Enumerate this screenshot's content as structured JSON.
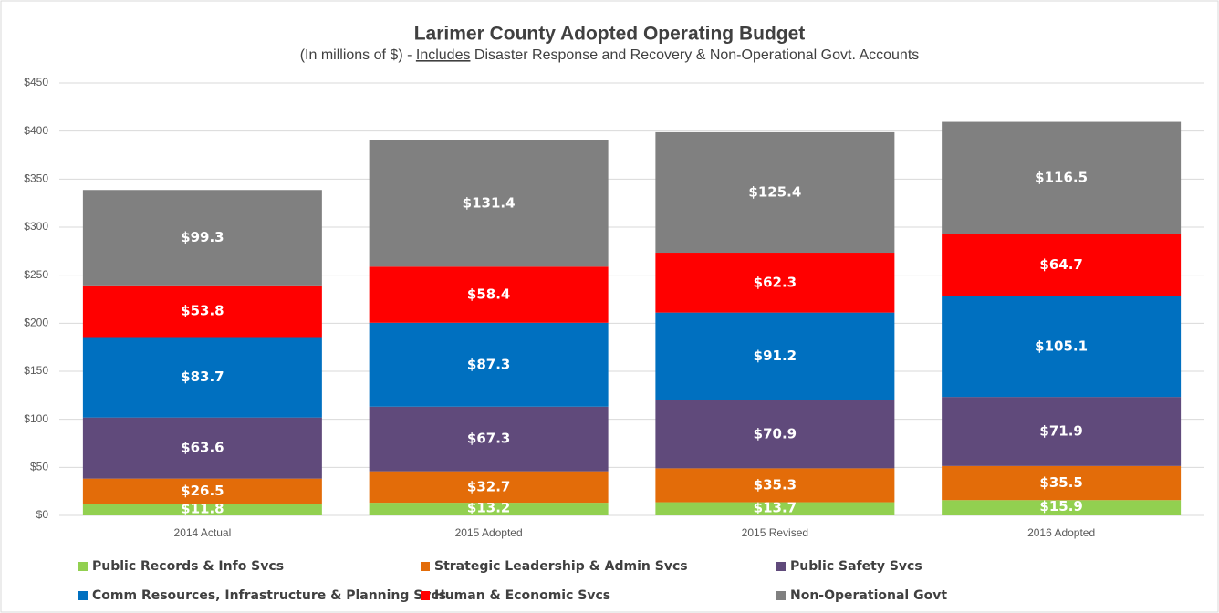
{
  "chart_data": {
    "type": "stacked_bar",
    "title": "Larimer County Adopted Operating Budget",
    "subtitle": [
      "(In millions  of $) -",
      "Includes",
      "Disaster Response and Recovery & Non-Operational Govt. Accounts"
    ],
    "categories": [
      "2014 Actual",
      "2015 Adopted",
      "2015 Revised",
      "2016 Adopted"
    ],
    "series": [
      {
        "name": "Public Records & Info Svcs",
        "color": "#92d050",
        "values": [
          11.8,
          13.2,
          13.7,
          15.9
        ],
        "value_labels": [
          "$11.8",
          "$13.2",
          "$13.7",
          "$15.9"
        ]
      },
      {
        "name": "Strategic Leadership & Admin Svcs",
        "color": "#e36c09",
        "values": [
          26.5,
          32.7,
          35.3,
          35.5
        ],
        "value_labels": [
          "$26.5",
          "$32.7",
          "$35.3",
          "$35.5"
        ]
      },
      {
        "name": "Public Safety Svcs",
        "color": "#604a7b",
        "values": [
          63.6,
          67.3,
          70.9,
          71.9
        ],
        "value_labels": [
          "$63.6",
          "$67.3",
          "$70.9",
          "$71.9"
        ]
      },
      {
        "name": "Comm Resources, Infrastructure & Planning Svcs.",
        "color": "#0070c0",
        "values": [
          83.7,
          87.3,
          91.2,
          105.1
        ],
        "value_labels": [
          "$83.7",
          "$87.3",
          "$91.2",
          "$105.1"
        ]
      },
      {
        "name": "Human & Economic Svcs",
        "color": "#ff0000",
        "values": [
          53.8,
          58.4,
          62.3,
          64.7
        ],
        "value_labels": [
          "$53.8",
          "$58.4",
          "$62.3",
          "$64.7"
        ]
      },
      {
        "name": "Non-Operational Govt",
        "color": "#808080",
        "values": [
          99.3,
          131.4,
          125.4,
          116.5
        ],
        "value_labels": [
          "$99.3",
          "$131.4",
          "$125.4",
          "$116.5"
        ]
      }
    ],
    "ylim": [
      0,
      450
    ],
    "yticks": [
      {
        "value": 0,
        "label": "$0"
      },
      {
        "value": 50,
        "label": "$50"
      },
      {
        "value": 100,
        "label": "$100"
      },
      {
        "value": 150,
        "label": "$150"
      },
      {
        "value": 200,
        "label": "$200"
      },
      {
        "value": 250,
        "label": "$250"
      },
      {
        "value": 300,
        "label": "$300"
      },
      {
        "value": 350,
        "label": "$350"
      },
      {
        "value": 400,
        "label": "$400"
      },
      {
        "value": 450,
        "label": "$450"
      }
    ],
    "grid": true,
    "legend": "bottom"
  }
}
